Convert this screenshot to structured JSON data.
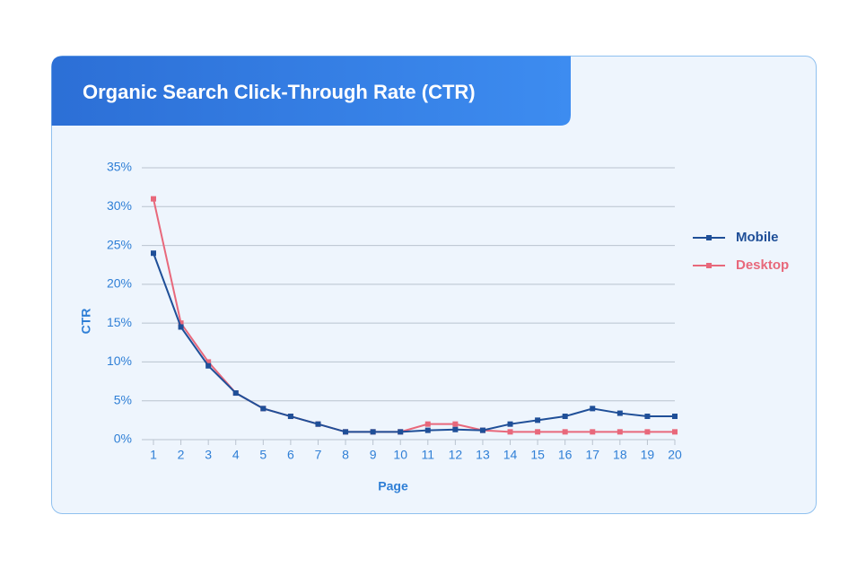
{
  "chart_data": {
    "type": "line",
    "title": "Organic Search Click-Through Rate (CTR)",
    "x_label": "Page",
    "y_label": "CTR",
    "x": [
      1,
      2,
      3,
      4,
      5,
      6,
      7,
      8,
      9,
      10,
      11,
      12,
      13,
      14,
      15,
      16,
      17,
      18,
      19,
      20
    ],
    "xlim": [
      1,
      20
    ],
    "xticks": [
      1,
      2,
      3,
      4,
      5,
      6,
      7,
      8,
      9,
      10,
      11,
      12,
      13,
      14,
      15,
      16,
      17,
      18,
      19,
      20
    ],
    "ylim": [
      0,
      35
    ],
    "yticks": [
      {
        "value": 0,
        "label": "0%"
      },
      {
        "value": 5,
        "label": "5%"
      },
      {
        "value": 10,
        "label": "10%"
      },
      {
        "value": 15,
        "label": "15%"
      },
      {
        "value": 20,
        "label": "20%"
      },
      {
        "value": 25,
        "label": "25%"
      },
      {
        "value": 30,
        "label": "30%"
      },
      {
        "value": 35,
        "label": "35%"
      }
    ],
    "grid": true,
    "legend": "right",
    "series": [
      {
        "name": "Mobile",
        "color": "#1f4f98",
        "values": [
          24,
          14.5,
          9.5,
          6,
          4,
          3,
          2,
          1,
          1,
          1,
          1.2,
          1.3,
          1.2,
          2,
          2.5,
          3,
          4,
          3.4,
          3,
          3
        ]
      },
      {
        "name": "Desktop",
        "color": "#e8687b",
        "values": [
          31,
          15,
          10,
          6,
          4,
          3,
          2,
          1,
          1,
          1,
          2,
          2,
          1.2,
          1,
          1,
          1,
          1,
          1,
          1,
          1
        ]
      }
    ]
  }
}
